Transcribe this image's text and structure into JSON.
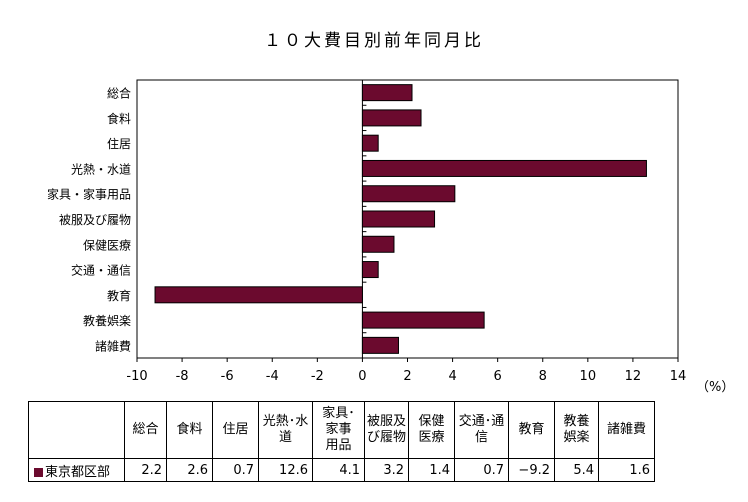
{
  "title": "１０大費目別前年同月比",
  "unit": "（%）",
  "colors": {
    "bar": "#6b0a2e",
    "bar_stroke": "#000000"
  },
  "chart_data": {
    "type": "bar",
    "orientation": "horizontal",
    "categories": [
      "総合",
      "食料",
      "住居",
      "光熱・水道",
      "家具・家事用品",
      "被服及び履物",
      "保健医療",
      "交通・通信",
      "教育",
      "教養娯楽",
      "諸雑費"
    ],
    "series": [
      {
        "name": "東京都区部",
        "values": [
          2.2,
          2.6,
          0.7,
          12.6,
          4.1,
          3.2,
          1.4,
          0.7,
          -9.2,
          5.4,
          1.6
        ]
      }
    ],
    "xlim": [
      -10,
      14
    ],
    "xticks": [
      "-10",
      "-8",
      "-6",
      "-4",
      "-2",
      "0",
      "2",
      "4",
      "6",
      "8",
      "10",
      "12",
      "14"
    ],
    "grid": false,
    "legend": "table"
  },
  "table": {
    "headers": [
      "総合",
      "食料",
      "住居",
      "光熱･水道",
      "家具･家事用品",
      "被服及び履物",
      "保健医療",
      "交通･通信",
      "教育",
      "教養娯楽",
      "諸雑費"
    ],
    "header_lines": [
      [
        "総合"
      ],
      [
        "食料"
      ],
      [
        "住居"
      ],
      [
        "光熱･水",
        "道"
      ],
      [
        "家具･",
        "家事",
        "用品"
      ],
      [
        "被服及",
        "び履物"
      ],
      [
        "保健",
        "医療"
      ],
      [
        "交通･通",
        "信"
      ],
      [
        "教育"
      ],
      [
        "教養",
        "娯楽"
      ],
      [
        "諸雑費"
      ]
    ],
    "row_label": "東京都区部",
    "values": [
      "2.2",
      "2.6",
      "0.7",
      "12.6",
      "4.1",
      "3.2",
      "1.4",
      "0.7",
      "−9.2",
      "5.4",
      "1.6"
    ]
  }
}
